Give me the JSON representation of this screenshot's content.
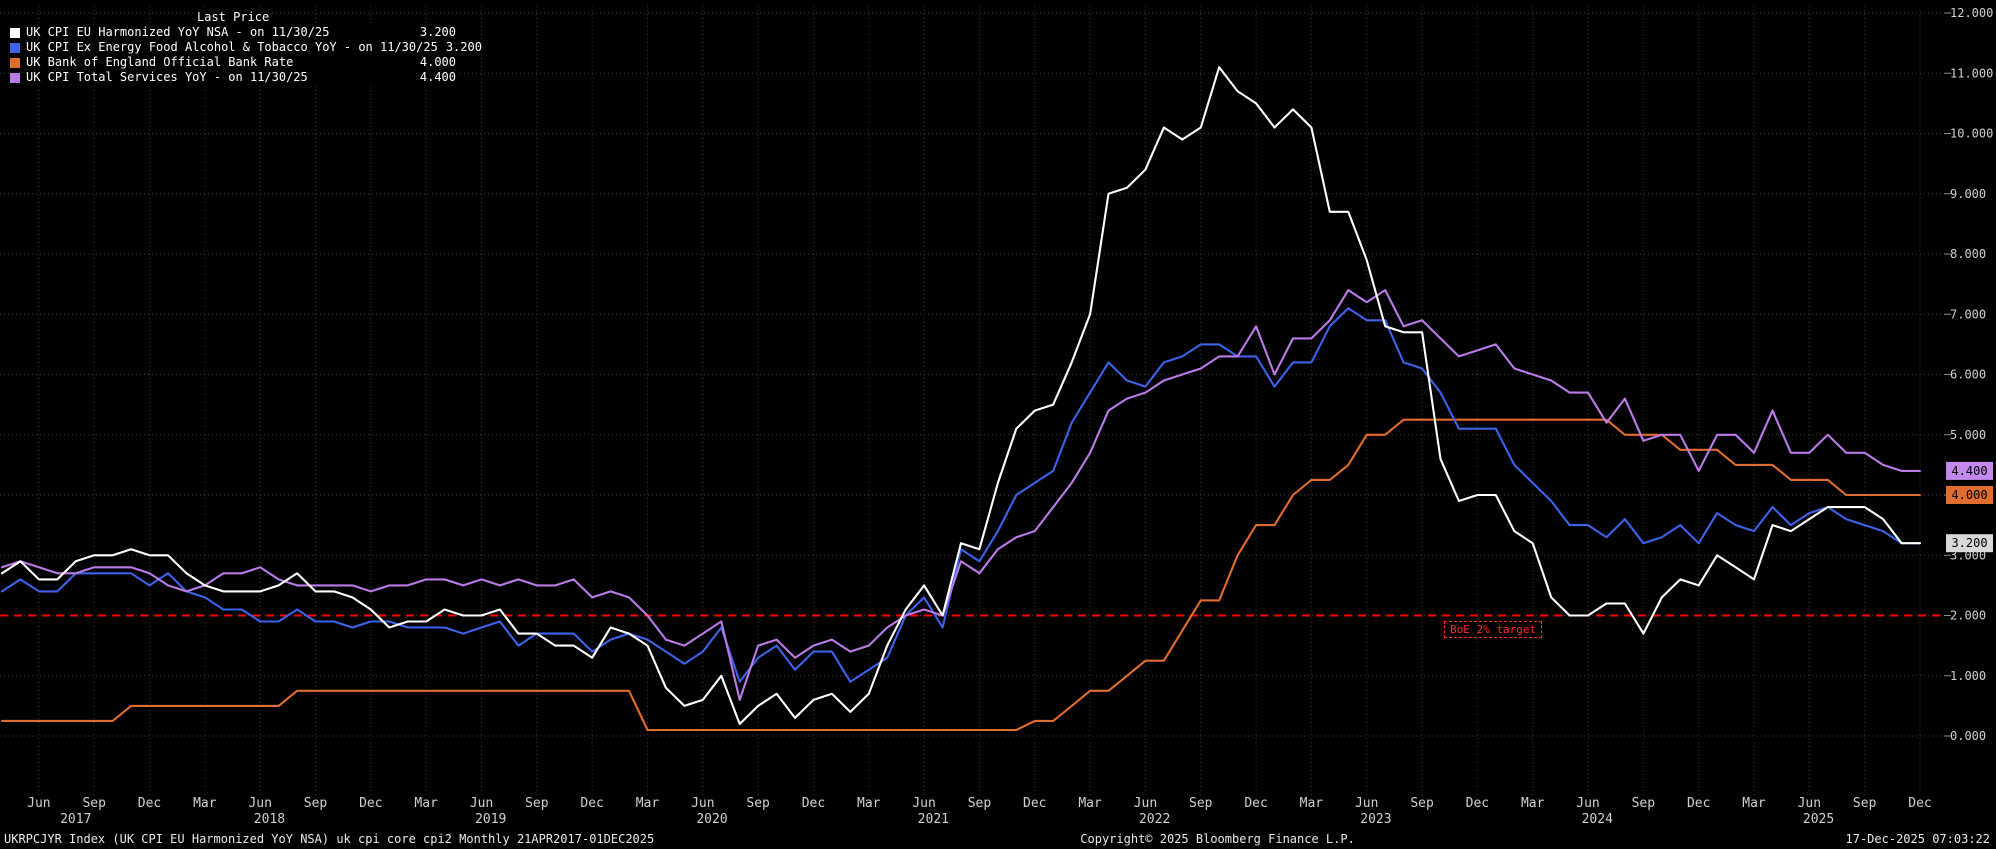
{
  "colors": {
    "background": "#000000",
    "grid": "#3a3a3a",
    "axis_text": "#d0d0d0",
    "axis_tick": "#8a8a8a",
    "target_line": "#ff0000",
    "chip_text": "#000000"
  },
  "legend": {
    "header": "Last Price",
    "items": [
      {
        "id": "cpi",
        "label": "UK CPI EU Harmonized YoY NSA -  on 11/30/25",
        "value": "3.200",
        "color": "#ffffff"
      },
      {
        "id": "core_cpi",
        "label": "UK CPI Ex Energy Food Alcohol & Tobacco YoY -  on 11/30/25",
        "value": "3.200",
        "color": "#3d62e8"
      },
      {
        "id": "bank_rate",
        "label": "UK Bank of England Official Bank Rate",
        "value": "4.000",
        "color": "#e06c2e"
      },
      {
        "id": "services_cpi",
        "label": "UK CPI Total Services YoY -  on 11/30/25",
        "value": "4.400",
        "color": "#ba7be6"
      }
    ]
  },
  "annotations": {
    "target_label": "BoE 2% target",
    "target_value": 2.0,
    "price_chips": [
      {
        "text": "4.400",
        "value": 4.4,
        "bg": "#c489ec"
      },
      {
        "text": "4.000",
        "value": 4.0,
        "bg": "#e06c2e"
      },
      {
        "text": "3.200",
        "value": 3.2,
        "bg": "#d9d9d9"
      }
    ]
  },
  "status_bar": {
    "left": "UKRPCJYR Index (UK CPI EU Harmonized YoY NSA) uk cpi core cpi2 Monthly 21APR2017-01DEC2025",
    "center": "Copyright© 2025 Bloomberg Finance L.P.",
    "right": "17-Dec-2025 07:03:22"
  },
  "chart_data": {
    "type": "line",
    "title": "",
    "xlabel": "",
    "ylabel": "",
    "frequency": "monthly",
    "x_start": "2017-04",
    "x_end": "2025-12",
    "ylim": [
      0,
      12
    ],
    "ytick_step": 1,
    "grid": "dotted",
    "legend_position": "top-left",
    "ytick_labels": [
      "0.000",
      "1.000",
      "2.000",
      "3.000",
      "4.000",
      "5.000",
      "6.000",
      "7.000",
      "8.000",
      "9.000",
      "10.000",
      "11.000",
      "12.000"
    ],
    "xticks": [
      {
        "m": 2,
        "label": "Jun"
      },
      {
        "m": 5,
        "label": "Sep"
      },
      {
        "m": 8,
        "label": "Dec"
      },
      {
        "m": 11,
        "label": "Mar"
      },
      {
        "m": 14,
        "label": "Jun"
      },
      {
        "m": 17,
        "label": "Sep"
      },
      {
        "m": 20,
        "label": "Dec"
      },
      {
        "m": 23,
        "label": "Mar"
      },
      {
        "m": 26,
        "label": "Jun"
      },
      {
        "m": 29,
        "label": "Sep"
      },
      {
        "m": 32,
        "label": "Dec"
      },
      {
        "m": 35,
        "label": "Mar"
      },
      {
        "m": 38,
        "label": "Jun"
      },
      {
        "m": 41,
        "label": "Sep"
      },
      {
        "m": 44,
        "label": "Dec"
      },
      {
        "m": 47,
        "label": "Mar"
      },
      {
        "m": 50,
        "label": "Jun"
      },
      {
        "m": 53,
        "label": "Sep"
      },
      {
        "m": 56,
        "label": "Dec"
      },
      {
        "m": 59,
        "label": "Mar"
      },
      {
        "m": 62,
        "label": "Jun"
      },
      {
        "m": 65,
        "label": "Sep"
      },
      {
        "m": 68,
        "label": "Dec"
      },
      {
        "m": 71,
        "label": "Mar"
      },
      {
        "m": 74,
        "label": "Jun"
      },
      {
        "m": 77,
        "label": "Sep"
      },
      {
        "m": 80,
        "label": "Dec"
      },
      {
        "m": 83,
        "label": "Mar"
      },
      {
        "m": 86,
        "label": "Jun"
      },
      {
        "m": 89,
        "label": "Sep"
      },
      {
        "m": 92,
        "label": "Dec"
      },
      {
        "m": 95,
        "label": "Mar"
      },
      {
        "m": 98,
        "label": "Jun"
      },
      {
        "m": 101,
        "label": "Sep"
      },
      {
        "m": 104,
        "label": "Dec"
      }
    ],
    "year_ticks": [
      {
        "m": 4,
        "label": "2017"
      },
      {
        "m": 14.5,
        "label": "2018"
      },
      {
        "m": 26.5,
        "label": "2019"
      },
      {
        "m": 38.5,
        "label": "2020"
      },
      {
        "m": 50.5,
        "label": "2021"
      },
      {
        "m": 62.5,
        "label": "2022"
      },
      {
        "m": 74.5,
        "label": "2023"
      },
      {
        "m": 86.5,
        "label": "2024"
      },
      {
        "m": 98.5,
        "label": "2025"
      }
    ],
    "series": [
      {
        "id": "bank_rate",
        "name": "UK Bank of England Official Bank Rate",
        "color": "#e06c2e",
        "last_value": 4.0,
        "values": [
          0.25,
          0.25,
          0.25,
          0.25,
          0.25,
          0.25,
          0.25,
          0.5,
          0.5,
          0.5,
          0.5,
          0.5,
          0.5,
          0.5,
          0.5,
          0.5,
          0.75,
          0.75,
          0.75,
          0.75,
          0.75,
          0.75,
          0.75,
          0.75,
          0.75,
          0.75,
          0.75,
          0.75,
          0.75,
          0.75,
          0.75,
          0.75,
          0.75,
          0.75,
          0.75,
          0.1,
          0.1,
          0.1,
          0.1,
          0.1,
          0.1,
          0.1,
          0.1,
          0.1,
          0.1,
          0.1,
          0.1,
          0.1,
          0.1,
          0.1,
          0.1,
          0.1,
          0.1,
          0.1,
          0.1,
          0.1,
          0.25,
          0.25,
          0.5,
          0.75,
          0.75,
          1.0,
          1.25,
          1.25,
          1.75,
          2.25,
          2.25,
          3.0,
          3.5,
          3.5,
          4.0,
          4.25,
          4.25,
          4.5,
          5.0,
          5.0,
          5.25,
          5.25,
          5.25,
          5.25,
          5.25,
          5.25,
          5.25,
          5.25,
          5.25,
          5.25,
          5.25,
          5.25,
          5.0,
          5.0,
          5.0,
          4.75,
          4.75,
          4.75,
          4.5,
          4.5,
          4.5,
          4.25,
          4.25,
          4.25,
          4.0,
          4.0,
          4.0,
          4.0,
          4.0
        ]
      },
      {
        "id": "core_cpi",
        "name": "UK CPI Ex Energy Food Alcohol & Tobacco YoY",
        "color": "#3d62e8",
        "last_value": 3.2,
        "values": [
          2.4,
          2.6,
          2.4,
          2.4,
          2.7,
          2.7,
          2.7,
          2.7,
          2.5,
          2.7,
          2.4,
          2.3,
          2.1,
          2.1,
          1.9,
          1.9,
          2.1,
          1.9,
          1.9,
          1.8,
          1.9,
          1.9,
          1.8,
          1.8,
          1.8,
          1.7,
          1.8,
          1.9,
          1.5,
          1.7,
          1.7,
          1.7,
          1.4,
          1.6,
          1.7,
          1.6,
          1.4,
          1.2,
          1.4,
          1.8,
          0.9,
          1.3,
          1.5,
          1.1,
          1.4,
          1.4,
          0.9,
          1.1,
          1.3,
          2.0,
          2.3,
          1.8,
          3.1,
          2.9,
          3.4,
          4.0,
          4.2,
          4.4,
          5.2,
          5.7,
          6.2,
          5.9,
          5.8,
          6.2,
          6.3,
          6.5,
          6.5,
          6.3,
          6.3,
          5.8,
          6.2,
          6.2,
          6.8,
          7.1,
          6.9,
          6.9,
          6.2,
          6.1,
          5.7,
          5.1,
          5.1,
          5.1,
          4.5,
          4.2,
          3.9,
          3.5,
          3.5,
          3.3,
          3.6,
          3.2,
          3.3,
          3.5,
          3.2,
          3.7,
          3.5,
          3.4,
          3.8,
          3.5,
          3.7,
          3.8,
          3.6,
          3.5,
          3.4,
          3.2,
          3.2
        ]
      },
      {
        "id": "services_cpi",
        "name": "UK CPI Total Services YoY",
        "color": "#ba7be6",
        "last_value": 4.4,
        "values": [
          2.8,
          2.9,
          2.8,
          2.7,
          2.7,
          2.8,
          2.8,
          2.8,
          2.7,
          2.5,
          2.4,
          2.5,
          2.7,
          2.7,
          2.8,
          2.6,
          2.5,
          2.5,
          2.5,
          2.5,
          2.4,
          2.5,
          2.5,
          2.6,
          2.6,
          2.5,
          2.6,
          2.5,
          2.6,
          2.5,
          2.5,
          2.6,
          2.3,
          2.4,
          2.3,
          2.0,
          1.6,
          1.5,
          1.7,
          1.9,
          0.6,
          1.5,
          1.6,
          1.3,
          1.5,
          1.6,
          1.4,
          1.5,
          1.8,
          2.0,
          2.1,
          2.0,
          2.9,
          2.7,
          3.1,
          3.3,
          3.4,
          3.8,
          4.2,
          4.7,
          5.4,
          5.6,
          5.7,
          5.9,
          6.0,
          6.1,
          6.3,
          6.3,
          6.8,
          6.0,
          6.6,
          6.6,
          6.9,
          7.4,
          7.2,
          7.4,
          6.8,
          6.9,
          6.6,
          6.3,
          6.4,
          6.5,
          6.1,
          6.0,
          5.9,
          5.7,
          5.7,
          5.2,
          5.6,
          4.9,
          5.0,
          5.0,
          4.4,
          5.0,
          5.0,
          4.7,
          5.4,
          4.7,
          4.7,
          5.0,
          4.7,
          4.7,
          4.5,
          4.4,
          4.4
        ]
      },
      {
        "id": "cpi",
        "name": "UK CPI EU Harmonized YoY NSA",
        "color": "#ffffff",
        "last_value": 3.2,
        "values": [
          2.7,
          2.9,
          2.6,
          2.6,
          2.9,
          3.0,
          3.0,
          3.1,
          3.0,
          3.0,
          2.7,
          2.5,
          2.4,
          2.4,
          2.4,
          2.5,
          2.7,
          2.4,
          2.4,
          2.3,
          2.1,
          1.8,
          1.9,
          1.9,
          2.1,
          2.0,
          2.0,
          2.1,
          1.7,
          1.7,
          1.5,
          1.5,
          1.3,
          1.8,
          1.7,
          1.5,
          0.8,
          0.5,
          0.6,
          1.0,
          0.2,
          0.5,
          0.7,
          0.3,
          0.6,
          0.7,
          0.4,
          0.7,
          1.5,
          2.1,
          2.5,
          2.0,
          3.2,
          3.1,
          4.2,
          5.1,
          5.4,
          5.5,
          6.2,
          7.0,
          9.0,
          9.1,
          9.4,
          10.1,
          9.9,
          10.1,
          11.1,
          10.7,
          10.5,
          10.1,
          10.4,
          10.1,
          8.7,
          8.7,
          7.9,
          6.8,
          6.7,
          6.7,
          4.6,
          3.9,
          4.0,
          4.0,
          3.4,
          3.2,
          2.3,
          2.0,
          2.0,
          2.2,
          2.2,
          1.7,
          2.3,
          2.6,
          2.5,
          3.0,
          2.8,
          2.6,
          3.5,
          3.4,
          3.6,
          3.8,
          3.8,
          3.8,
          3.6,
          3.2,
          3.2
        ]
      }
    ]
  }
}
